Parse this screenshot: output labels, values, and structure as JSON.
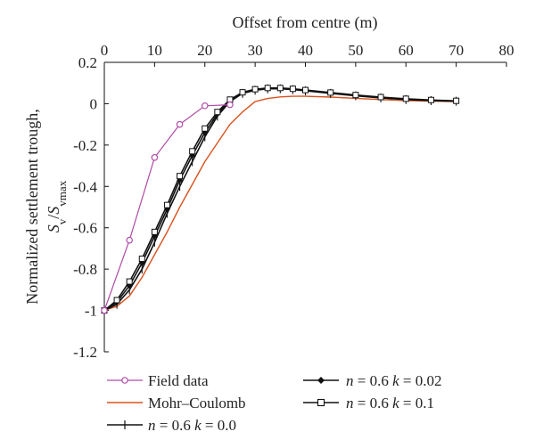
{
  "chart_data": {
    "type": "line",
    "title": "",
    "xlabel": "Offset from centre (m)",
    "ylabel_line1": "Normalized settlement trough,",
    "ylabel_s": "S",
    "ylabel_v": "v",
    "ylabel_slash": "/",
    "ylabel_vmax": "vmax",
    "xlim": [
      0,
      80
    ],
    "ylim": [
      -1.2,
      0.2
    ],
    "xticks": [
      0,
      10,
      20,
      30,
      40,
      50,
      60,
      70,
      80
    ],
    "yticks": [
      0.2,
      0,
      -0.2,
      -0.4,
      -0.6,
      -0.8,
      -1,
      -1.2
    ],
    "x_axis_position": "top",
    "grid": false,
    "legend_position": "bottom",
    "series": [
      {
        "name": "Field data",
        "color": "#b04aa6",
        "marker": "circle-open",
        "x": [
          0,
          5,
          10,
          15,
          20,
          25
        ],
        "y": [
          -1,
          -0.66,
          -0.26,
          -0.1,
          -0.01,
          -0.005
        ]
      },
      {
        "name": "Mohr–Coulomb",
        "color": "#d8521e",
        "marker": "none",
        "x": [
          0,
          2.5,
          5,
          7.5,
          10,
          12.5,
          15,
          17.5,
          20,
          22.5,
          25,
          27.5,
          30,
          32.5,
          35,
          37.5,
          40,
          45,
          50,
          55,
          60,
          65,
          70
        ],
        "y": [
          -1,
          -0.98,
          -0.93,
          -0.84,
          -0.73,
          -0.62,
          -0.5,
          -0.39,
          -0.28,
          -0.19,
          -0.1,
          -0.04,
          0.01,
          0.025,
          0.033,
          0.036,
          0.036,
          0.032,
          0.026,
          0.02,
          0.015,
          0.012,
          0.01
        ]
      },
      {
        "name_n": "n",
        "name_k": "k",
        "name_mid": " = 0.6 ",
        "name_val": " = 0.0",
        "color": "#111111",
        "marker": "plus",
        "x": [
          0,
          2.5,
          5,
          7.5,
          10,
          12.5,
          15,
          17.5,
          20,
          22.5,
          25,
          27.5,
          30,
          32.5,
          35,
          37.5,
          40,
          45,
          50,
          55,
          60,
          65,
          70
        ],
        "y": [
          -1,
          -0.97,
          -0.9,
          -0.8,
          -0.67,
          -0.53,
          -0.4,
          -0.28,
          -0.16,
          -0.06,
          0.01,
          0.05,
          0.065,
          0.072,
          0.072,
          0.068,
          0.062,
          0.05,
          0.038,
          0.028,
          0.02,
          0.015,
          0.012
        ]
      },
      {
        "name_n": "n",
        "name_k": "k",
        "name_mid": " = 0.6 ",
        "name_val": " = 0.02",
        "color": "#111111",
        "marker": "diamond",
        "x": [
          0,
          2.5,
          5,
          7.5,
          10,
          12.5,
          15,
          17.5,
          20,
          22.5,
          25,
          27.5,
          30,
          32.5,
          35,
          37.5,
          40,
          45,
          50,
          55,
          60,
          65,
          70
        ],
        "y": [
          -1,
          -0.96,
          -0.88,
          -0.77,
          -0.64,
          -0.51,
          -0.37,
          -0.25,
          -0.14,
          -0.05,
          0.015,
          0.052,
          0.068,
          0.074,
          0.074,
          0.07,
          0.064,
          0.052,
          0.04,
          0.03,
          0.022,
          0.016,
          0.013
        ]
      },
      {
        "name_n": "n",
        "name_k": "k",
        "name_mid": " = 0.6 ",
        "name_val": " = 0.1",
        "color": "#111111",
        "marker": "square-open",
        "x": [
          0,
          2.5,
          5,
          7.5,
          10,
          12.5,
          15,
          17.5,
          20,
          22.5,
          25,
          27.5,
          30,
          32.5,
          35,
          37.5,
          40,
          45,
          50,
          55,
          60,
          65,
          70
        ],
        "y": [
          -1,
          -0.95,
          -0.86,
          -0.75,
          -0.62,
          -0.49,
          -0.35,
          -0.23,
          -0.12,
          -0.04,
          0.02,
          0.055,
          0.07,
          0.076,
          0.076,
          0.072,
          0.066,
          0.054,
          0.042,
          0.032,
          0.024,
          0.018,
          0.014
        ]
      }
    ]
  }
}
